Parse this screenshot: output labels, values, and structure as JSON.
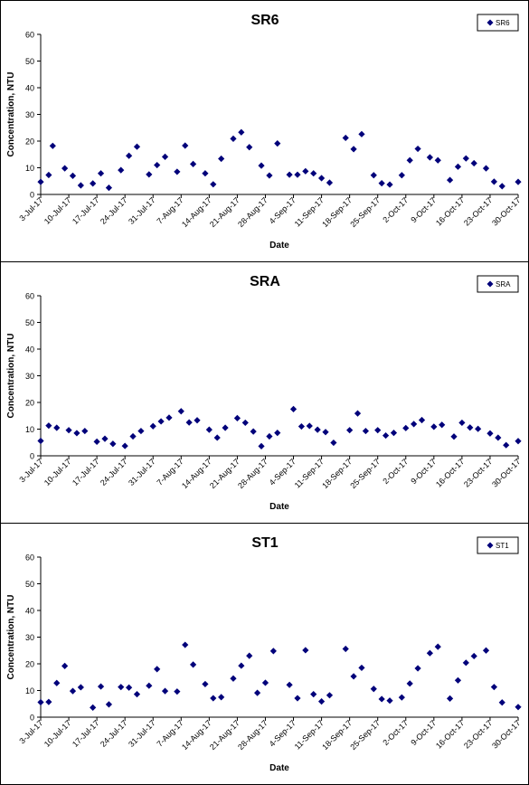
{
  "marker_color": "#00007A",
  "chart_data": [
    {
      "type": "scatter",
      "title": "SR6",
      "xlabel": "Date",
      "ylabel": "Concentration, NTU",
      "ylim": [
        0,
        60
      ],
      "yticks": [
        0,
        10,
        20,
        30,
        40,
        50,
        60
      ],
      "xlim": [
        "2017-07-03",
        "2017-10-30"
      ],
      "xtick_labels": [
        "3-Jul-17",
        "10-Jul-17",
        "17-Jul-17",
        "24-Jul-17",
        "31-Jul-17",
        "7-Aug-17",
        "14-Aug-17",
        "21-Aug-17",
        "28-Aug-17",
        "4-Sep-17",
        "11-Sep-17",
        "18-Sep-17",
        "25-Sep-17",
        "2-Oct-17",
        "9-Oct-17",
        "16-Oct-17",
        "23-Oct-17",
        "30-Oct-17"
      ],
      "legend": "top-right",
      "grid": false,
      "series": [
        {
          "name": "SR6",
          "points": [
            [
              "2017-07-03",
              4.7
            ],
            [
              "2017-07-05",
              7.3
            ],
            [
              "2017-07-06",
              18.2
            ],
            [
              "2017-07-09",
              9.8
            ],
            [
              "2017-07-11",
              7.0
            ],
            [
              "2017-07-13",
              3.4
            ],
            [
              "2017-07-16",
              4.1
            ],
            [
              "2017-07-18",
              7.9
            ],
            [
              "2017-07-20",
              2.5
            ],
            [
              "2017-07-23",
              9.1
            ],
            [
              "2017-07-25",
              14.5
            ],
            [
              "2017-07-27",
              17.9
            ],
            [
              "2017-07-30",
              7.5
            ],
            [
              "2017-08-01",
              11.0
            ],
            [
              "2017-08-03",
              14.1
            ],
            [
              "2017-08-06",
              8.5
            ],
            [
              "2017-08-08",
              18.3
            ],
            [
              "2017-08-10",
              11.4
            ],
            [
              "2017-08-13",
              7.9
            ],
            [
              "2017-08-15",
              3.8
            ],
            [
              "2017-08-17",
              13.4
            ],
            [
              "2017-08-20",
              20.9
            ],
            [
              "2017-08-22",
              23.3
            ],
            [
              "2017-08-24",
              17.7
            ],
            [
              "2017-08-27",
              10.8
            ],
            [
              "2017-08-29",
              7.1
            ],
            [
              "2017-08-31",
              19.1
            ],
            [
              "2017-09-03",
              7.4
            ],
            [
              "2017-09-05",
              7.4
            ],
            [
              "2017-09-07",
              8.7
            ],
            [
              "2017-09-09",
              7.9
            ],
            [
              "2017-09-11",
              6.1
            ],
            [
              "2017-09-13",
              4.4
            ],
            [
              "2017-09-17",
              21.2
            ],
            [
              "2017-09-19",
              17.0
            ],
            [
              "2017-09-21",
              22.6
            ],
            [
              "2017-09-24",
              7.2
            ],
            [
              "2017-09-26",
              4.2
            ],
            [
              "2017-09-28",
              3.7
            ],
            [
              "2017-10-01",
              7.2
            ],
            [
              "2017-10-03",
              12.8
            ],
            [
              "2017-10-05",
              17.1
            ],
            [
              "2017-10-08",
              13.9
            ],
            [
              "2017-10-10",
              12.8
            ],
            [
              "2017-10-13",
              5.4
            ],
            [
              "2017-10-15",
              10.4
            ],
            [
              "2017-10-17",
              13.5
            ],
            [
              "2017-10-19",
              11.7
            ],
            [
              "2017-10-22",
              9.8
            ],
            [
              "2017-10-24",
              4.8
            ],
            [
              "2017-10-26",
              3.1
            ],
            [
              "2017-10-30",
              4.7
            ]
          ]
        }
      ]
    },
    {
      "type": "scatter",
      "title": "SRA",
      "xlabel": "Date",
      "ylabel": "Concentration, NTU",
      "ylim": [
        0,
        60
      ],
      "yticks": [
        0,
        10,
        20,
        30,
        40,
        50,
        60
      ],
      "xlim": [
        "2017-07-03",
        "2017-10-30"
      ],
      "xtick_labels": [
        "3-Jul-17",
        "10-Jul-17",
        "17-Jul-17",
        "24-Jul-17",
        "31-Jul-17",
        "7-Aug-17",
        "14-Aug-17",
        "21-Aug-17",
        "28-Aug-17",
        "4-Sep-17",
        "11-Sep-17",
        "18-Sep-17",
        "25-Sep-17",
        "2-Oct-17",
        "9-Oct-17",
        "16-Oct-17",
        "23-Oct-17",
        "30-Oct-17"
      ],
      "legend": "top-right",
      "grid": false,
      "series": [
        {
          "name": "SRA",
          "points": [
            [
              "2017-07-03",
              5.6
            ],
            [
              "2017-07-05",
              11.3
            ],
            [
              "2017-07-07",
              10.5
            ],
            [
              "2017-07-10",
              9.6
            ],
            [
              "2017-07-12",
              8.5
            ],
            [
              "2017-07-14",
              9.3
            ],
            [
              "2017-07-17",
              5.3
            ],
            [
              "2017-07-19",
              6.4
            ],
            [
              "2017-07-21",
              4.5
            ],
            [
              "2017-07-24",
              3.7
            ],
            [
              "2017-07-26",
              7.3
            ],
            [
              "2017-07-28",
              9.3
            ],
            [
              "2017-07-31",
              11.1
            ],
            [
              "2017-08-02",
              12.9
            ],
            [
              "2017-08-04",
              14.3
            ],
            [
              "2017-08-07",
              16.7
            ],
            [
              "2017-08-09",
              12.5
            ],
            [
              "2017-08-11",
              13.3
            ],
            [
              "2017-08-14",
              9.8
            ],
            [
              "2017-08-16",
              6.8
            ],
            [
              "2017-08-18",
              10.5
            ],
            [
              "2017-08-21",
              14.1
            ],
            [
              "2017-08-23",
              12.4
            ],
            [
              "2017-08-25",
              9.1
            ],
            [
              "2017-08-27",
              3.6
            ],
            [
              "2017-08-29",
              7.3
            ],
            [
              "2017-08-31",
              8.6
            ],
            [
              "2017-09-04",
              17.5
            ],
            [
              "2017-09-06",
              11.0
            ],
            [
              "2017-09-08",
              11.2
            ],
            [
              "2017-09-10",
              9.8
            ],
            [
              "2017-09-12",
              8.9
            ],
            [
              "2017-09-14",
              4.9
            ],
            [
              "2017-09-18",
              9.6
            ],
            [
              "2017-09-20",
              15.9
            ],
            [
              "2017-09-22",
              9.3
            ],
            [
              "2017-09-25",
              9.6
            ],
            [
              "2017-09-27",
              7.6
            ],
            [
              "2017-09-29",
              8.6
            ],
            [
              "2017-10-02",
              10.4
            ],
            [
              "2017-10-04",
              11.9
            ],
            [
              "2017-10-06",
              13.4
            ],
            [
              "2017-10-09",
              10.9
            ],
            [
              "2017-10-11",
              11.6
            ],
            [
              "2017-10-14",
              7.2
            ],
            [
              "2017-10-16",
              12.4
            ],
            [
              "2017-10-18",
              10.6
            ],
            [
              "2017-10-20",
              10.1
            ],
            [
              "2017-10-23",
              8.4
            ],
            [
              "2017-10-25",
              6.8
            ],
            [
              "2017-10-27",
              4.0
            ],
            [
              "2017-10-30",
              5.5
            ]
          ]
        }
      ]
    },
    {
      "type": "scatter",
      "title": "ST1",
      "xlabel": "Date",
      "ylabel": "Concentration, NTU",
      "ylim": [
        0,
        60
      ],
      "yticks": [
        0,
        10,
        20,
        30,
        40,
        50,
        60
      ],
      "xlim": [
        "2017-07-03",
        "2017-10-30"
      ],
      "xtick_labels": [
        "3-Jul-17",
        "10-Jul-17",
        "17-Jul-17",
        "24-Jul-17",
        "31-Jul-17",
        "7-Aug-17",
        "14-Aug-17",
        "21-Aug-17",
        "28-Aug-17",
        "4-Sep-17",
        "11-Sep-17",
        "18-Sep-17",
        "25-Sep-17",
        "2-Oct-17",
        "9-Oct-17",
        "16-Oct-17",
        "23-Oct-17",
        "30-Oct-17"
      ],
      "legend": "top-right",
      "grid": false,
      "series": [
        {
          "name": "ST1",
          "points": [
            [
              "2017-07-03",
              5.6
            ],
            [
              "2017-07-05",
              5.7
            ],
            [
              "2017-07-07",
              12.8
            ],
            [
              "2017-07-09",
              19.2
            ],
            [
              "2017-07-11",
              9.8
            ],
            [
              "2017-07-13",
              11.2
            ],
            [
              "2017-07-16",
              3.6
            ],
            [
              "2017-07-18",
              11.5
            ],
            [
              "2017-07-20",
              4.8
            ],
            [
              "2017-07-23",
              11.3
            ],
            [
              "2017-07-25",
              11.1
            ],
            [
              "2017-07-27",
              8.6
            ],
            [
              "2017-07-30",
              11.8
            ],
            [
              "2017-08-01",
              18.0
            ],
            [
              "2017-08-03",
              9.8
            ],
            [
              "2017-08-06",
              9.6
            ],
            [
              "2017-08-08",
              27.1
            ],
            [
              "2017-08-10",
              19.7
            ],
            [
              "2017-08-13",
              12.4
            ],
            [
              "2017-08-15",
              7.1
            ],
            [
              "2017-08-17",
              7.5
            ],
            [
              "2017-08-20",
              14.5
            ],
            [
              "2017-08-22",
              19.3
            ],
            [
              "2017-08-24",
              23.0
            ],
            [
              "2017-08-26",
              9.1
            ],
            [
              "2017-08-28",
              12.9
            ],
            [
              "2017-08-30",
              24.8
            ],
            [
              "2017-09-03",
              12.1
            ],
            [
              "2017-09-05",
              7.1
            ],
            [
              "2017-09-07",
              25.1
            ],
            [
              "2017-09-09",
              8.6
            ],
            [
              "2017-09-11",
              5.9
            ],
            [
              "2017-09-13",
              8.2
            ],
            [
              "2017-09-17",
              25.6
            ],
            [
              "2017-09-19",
              15.3
            ],
            [
              "2017-09-21",
              18.5
            ],
            [
              "2017-09-24",
              10.6
            ],
            [
              "2017-09-26",
              6.8
            ],
            [
              "2017-09-28",
              6.2
            ],
            [
              "2017-10-01",
              7.4
            ],
            [
              "2017-10-03",
              12.6
            ],
            [
              "2017-10-05",
              18.3
            ],
            [
              "2017-10-08",
              24.0
            ],
            [
              "2017-10-10",
              26.4
            ],
            [
              "2017-10-13",
              7.0
            ],
            [
              "2017-10-15",
              13.8
            ],
            [
              "2017-10-17",
              20.4
            ],
            [
              "2017-10-19",
              22.9
            ],
            [
              "2017-10-22",
              25.0
            ],
            [
              "2017-10-24",
              11.3
            ],
            [
              "2017-10-26",
              5.5
            ],
            [
              "2017-10-30",
              3.8
            ]
          ]
        }
      ]
    }
  ]
}
